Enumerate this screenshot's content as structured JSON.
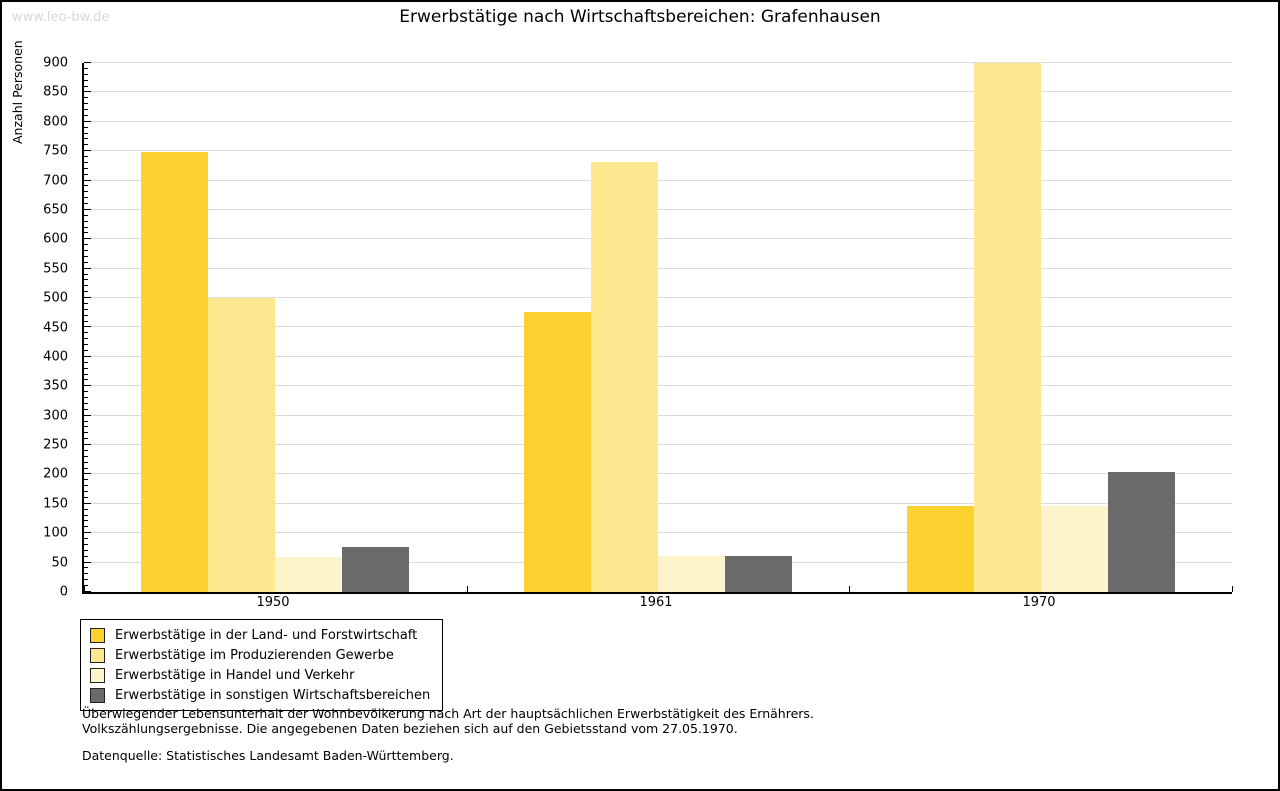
{
  "header": {
    "watermark": "www.leo-bw.de",
    "title": "Erwerbstätige nach Wirtschaftsbereichen: Grafenhausen"
  },
  "chart_data": {
    "type": "bar",
    "title": "Erwerbstätige nach Wirtschaftsbereichen: Grafenhausen",
    "ylabel": "Anzahl Personen",
    "xlabel": "",
    "categories": [
      "1950",
      "1961",
      "1970"
    ],
    "series": [
      {
        "name": "Erwerbstätige in der Land- und Forstwirtschaft",
        "color": "#fbd22f",
        "values": [
          748,
          477,
          147
        ]
      },
      {
        "name": "Erwerbstätige im Produzierenden Gewerbe",
        "color": "#fce88e",
        "values": [
          500,
          731,
          900
        ]
      },
      {
        "name": "Erwerbstätige in Handel und Verkehr",
        "color": "#fdf4cc",
        "values": [
          59,
          62,
          147
        ]
      },
      {
        "name": "Erwerbstätige in sonstigen Wirtschaftsbereichen",
        "color": "#6a6a6a",
        "values": [
          77,
          62,
          205
        ]
      }
    ],
    "ylim": [
      0,
      900
    ],
    "ytick_step": 50,
    "minor_tick_step": 10,
    "grid": true,
    "gridline_color": "#dcdcdc",
    "legend_position": "bottom-left"
  },
  "footnotes": {
    "line1": "Überwiegender Lebensunterhalt der Wohnbevölkerung nach Art der hauptsächlichen Erwerbstätigkeit des Ernährers.",
    "line2": "Volkszählungsergebnisse. Die angegebenen Daten beziehen sich auf den Gebietsstand vom 27.05.1970.",
    "source": "Datenquelle: Statistisches Landesamt Baden-Württemberg."
  }
}
